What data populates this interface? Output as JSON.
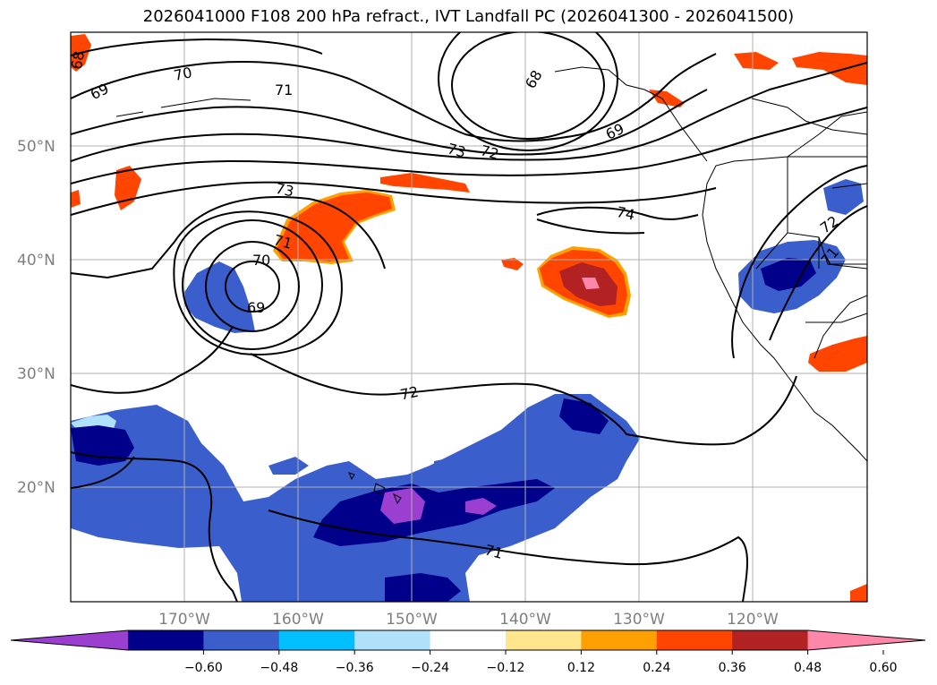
{
  "title": "2026041000 F108 200 hPa refract., IVT Landfall PC (2026041300 - 2026041500)",
  "map": {
    "lat_labels": [
      "50°N",
      "40°N",
      "30°N",
      "20°N"
    ],
    "lon_labels": [
      "170°W",
      "160°W",
      "150°W",
      "140°W",
      "130°W",
      "120°W"
    ],
    "contour_labels": [
      "68",
      "70",
      "69",
      "71",
      "68",
      "69",
      "72",
      "73",
      "73",
      "74",
      "71",
      "70",
      "69",
      "72",
      "72",
      "71",
      "71"
    ]
  },
  "colorbar": {
    "ticks": [
      "−0.60",
      "−0.48",
      "−0.36",
      "−0.24",
      "−0.12",
      "0.12",
      "0.24",
      "0.36",
      "0.48",
      "0.60"
    ],
    "colors": [
      "#9b3fd1",
      "#00008b",
      "#3a5fcd",
      "#00bfff",
      "#afe1fa",
      "#ffffff",
      "#ffe68c",
      "#ffa000",
      "#ff4500",
      "#b22222",
      "#ff88aa"
    ]
  }
}
